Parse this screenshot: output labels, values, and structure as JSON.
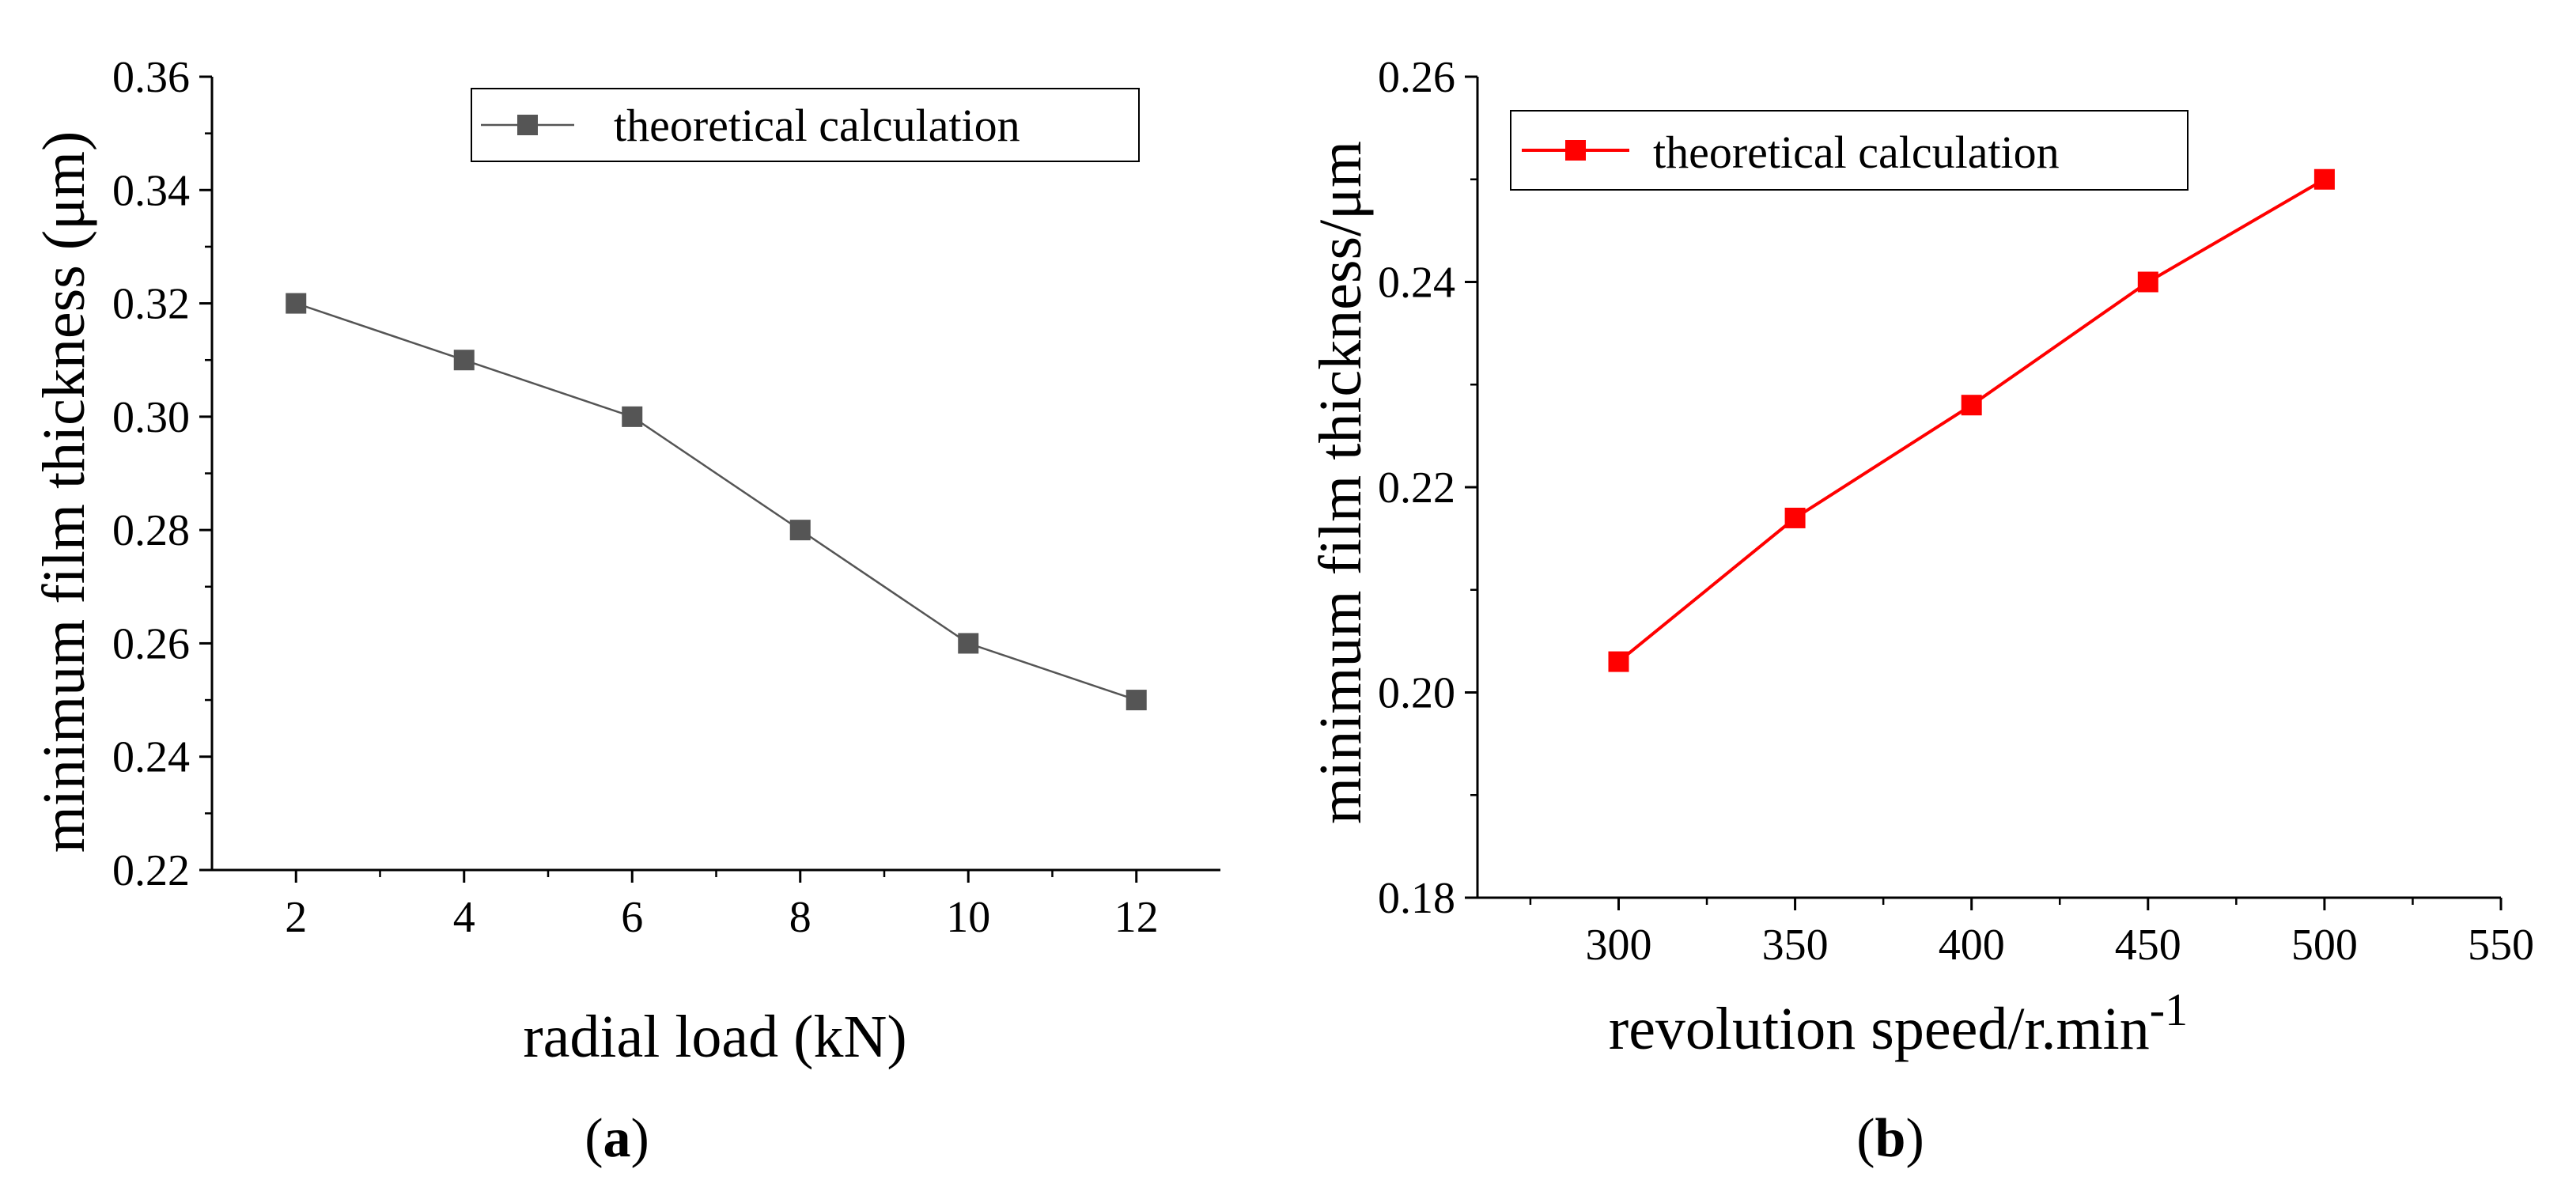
{
  "chart_data": [
    {
      "type": "line",
      "title": "",
      "xlabel": "radial load (kN)",
      "ylabel": "minimum film thickness (μm)",
      "caption_letter": "a",
      "x": [
        2,
        4,
        6,
        8,
        10,
        12
      ],
      "xlim": [
        1,
        13
      ],
      "ylim": [
        0.22,
        0.36
      ],
      "xticks": [
        2,
        4,
        6,
        8,
        10,
        12
      ],
      "xtick_labels": [
        "2",
        "4",
        "6",
        "8",
        "10",
        "12"
      ],
      "yticks": [
        0.22,
        0.24,
        0.26,
        0.28,
        0.3,
        0.32,
        0.34,
        0.36
      ],
      "ytick_labels": [
        "0.22",
        "0.24",
        "0.26",
        "0.28",
        "0.30",
        "0.32",
        "0.34",
        "0.36"
      ],
      "grid": false,
      "legend_position": "top-right",
      "series": [
        {
          "name": "theoretical calculation",
          "color": "#555555",
          "marker": "square",
          "values": [
            0.32,
            0.31,
            0.3,
            0.28,
            0.26,
            0.25
          ]
        }
      ]
    },
    {
      "type": "line",
      "title": "",
      "xlabel": "revolution speed/r.min",
      "xlabel_superscript": "-1",
      "ylabel": "minimum film thickness/μm",
      "caption_letter": "b",
      "x": [
        300,
        350,
        400,
        450,
        500
      ],
      "xlim": [
        260,
        550
      ],
      "ylim": [
        0.18,
        0.26
      ],
      "xticks": [
        300,
        350,
        400,
        450,
        500,
        550
      ],
      "xtick_labels": [
        "300",
        "350",
        "400",
        "450",
        "500",
        "550"
      ],
      "yticks": [
        0.18,
        0.2,
        0.22,
        0.24,
        0.26
      ],
      "ytick_labels": [
        "0.18",
        "0.20",
        "0.22",
        "0.24",
        "0.26"
      ],
      "grid": false,
      "legend_position": "top-left",
      "series": [
        {
          "name": "theoretical calculation",
          "color": "#ff0000",
          "marker": "square",
          "values": [
            0.203,
            0.217,
            0.228,
            0.24,
            0.25
          ]
        }
      ]
    }
  ]
}
